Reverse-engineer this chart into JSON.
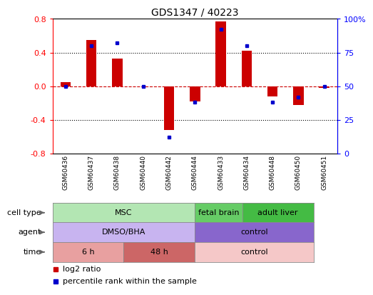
{
  "title": "GDS1347 / 40223",
  "samples": [
    "GSM60436",
    "GSM60437",
    "GSM60438",
    "GSM60440",
    "GSM60442",
    "GSM60444",
    "GSM60433",
    "GSM60434",
    "GSM60448",
    "GSM60450",
    "GSM60451"
  ],
  "log2_ratio": [
    0.05,
    0.55,
    0.33,
    0.0,
    -0.52,
    -0.18,
    0.77,
    0.42,
    -0.12,
    -0.22,
    -0.02
  ],
  "percentile_rank": [
    50,
    80,
    82,
    50,
    12,
    38,
    92,
    80,
    38,
    42,
    50
  ],
  "ylim": [
    -0.8,
    0.8
  ],
  "y2lim": [
    0,
    100
  ],
  "yticks": [
    -0.8,
    -0.4,
    0.0,
    0.4,
    0.8
  ],
  "y2ticks": [
    0,
    25,
    50,
    75,
    100
  ],
  "y2ticklabels": [
    "0",
    "25",
    "50",
    "75",
    "100%"
  ],
  "dotted_lines": [
    -0.4,
    0.4
  ],
  "bar_color": "#cc0000",
  "blue_color": "#0000cc",
  "cell_type_groups": [
    {
      "label": "MSC",
      "start": 0,
      "end": 5,
      "color": "#b3e6b3"
    },
    {
      "label": "fetal brain",
      "start": 6,
      "end": 7,
      "color": "#66cc66"
    },
    {
      "label": "adult liver",
      "start": 8,
      "end": 10,
      "color": "#44bb44"
    }
  ],
  "agent_groups": [
    {
      "label": "DMSO/BHA",
      "start": 0,
      "end": 5,
      "color": "#c8b4f0"
    },
    {
      "label": "control",
      "start": 6,
      "end": 10,
      "color": "#8866cc"
    }
  ],
  "time_groups": [
    {
      "label": "6 h",
      "start": 0,
      "end": 2,
      "color": "#e8a0a0"
    },
    {
      "label": "48 h",
      "start": 3,
      "end": 5,
      "color": "#cc6666"
    },
    {
      "label": "control",
      "start": 6,
      "end": 10,
      "color": "#f5c8c8"
    }
  ],
  "row_labels": [
    "cell type",
    "agent",
    "time"
  ],
  "legend_items": [
    {
      "label": "log2 ratio",
      "color": "#cc0000"
    },
    {
      "label": "percentile rank within the sample",
      "color": "#0000cc"
    }
  ]
}
